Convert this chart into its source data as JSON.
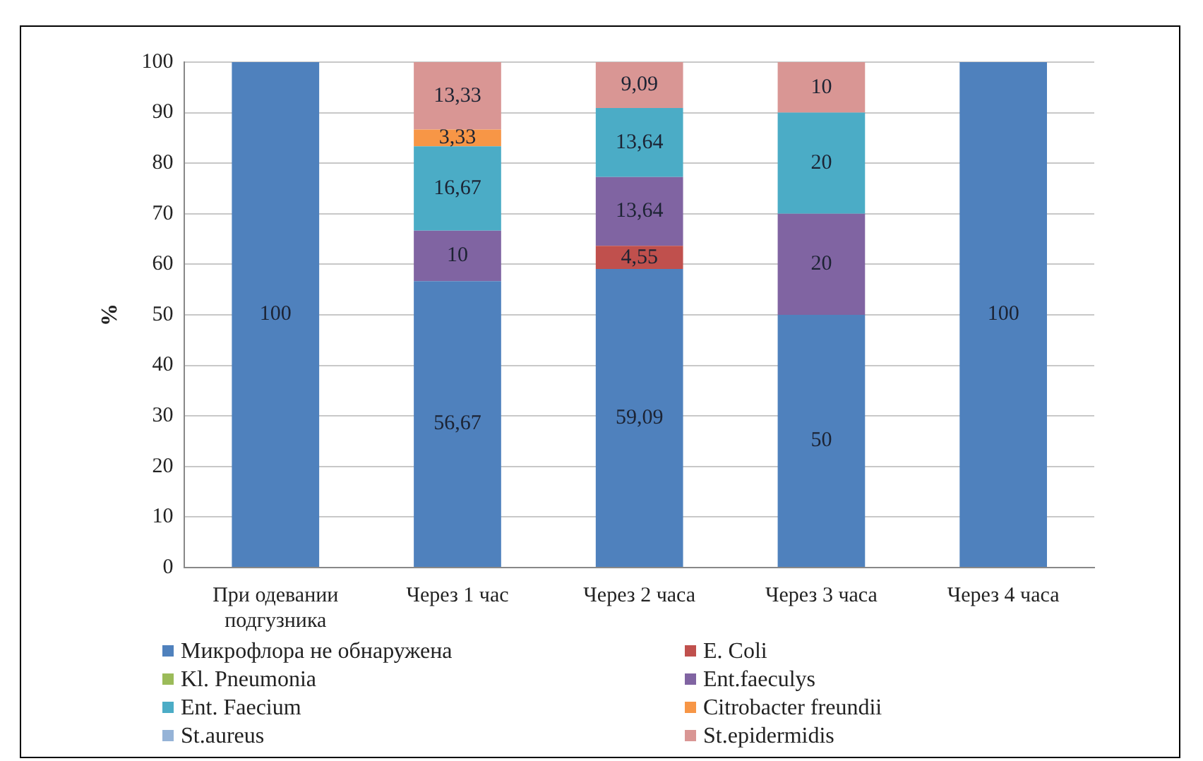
{
  "chart_data": {
    "type": "bar",
    "stacked": true,
    "ylabel": "%",
    "categories": [
      "При одевании подгузника",
      "Через 1 час",
      "Через 2 часа",
      "Через 3 часа",
      "Через 4 часа"
    ],
    "ylim": [
      0,
      100
    ],
    "yticks": [
      0,
      10,
      20,
      30,
      40,
      50,
      60,
      70,
      80,
      90,
      100
    ],
    "grid": "y",
    "legend": "bottom",
    "series": [
      {
        "name": "Микрофлора не обнаружена",
        "color": "#4f81bd",
        "values": [
          100,
          56.67,
          59.09,
          50,
          100
        ],
        "value_labels": [
          "100",
          "56,67",
          "59,09",
          "50",
          "100"
        ]
      },
      {
        "name": "E. Coli",
        "color": "#c0504d",
        "values": [
          null,
          null,
          4.55,
          null,
          null
        ],
        "value_labels": [
          null,
          null,
          "4,55",
          null,
          null
        ]
      },
      {
        "name": "Kl. Pneumonia",
        "color": "#9bbb59",
        "values": [
          null,
          null,
          null,
          null,
          null
        ]
      },
      {
        "name": "Ent.faeculys",
        "color": "#8064a2",
        "values": [
          null,
          10,
          13.64,
          20,
          null
        ],
        "value_labels": [
          null,
          "10",
          "13,64",
          "20",
          null
        ]
      },
      {
        "name": "Ent. Faecium",
        "color": "#4bacc6",
        "values": [
          null,
          16.67,
          13.64,
          20,
          null
        ],
        "value_labels": [
          null,
          "16,67",
          "13,64",
          "20",
          null
        ]
      },
      {
        "name": "Citrobacter freundii",
        "color": "#f79646",
        "values": [
          null,
          3.33,
          null,
          null,
          null
        ],
        "value_labels": [
          null,
          "3,33",
          null,
          null,
          null
        ]
      },
      {
        "name": "St.aureus",
        "color": "#95b3d7",
        "values": [
          null,
          null,
          null,
          null,
          null
        ]
      },
      {
        "name": "St.epidermidis",
        "color": "#d99694",
        "values": [
          null,
          13.33,
          9.09,
          10,
          null
        ],
        "value_labels": [
          null,
          "13,33",
          "9,09",
          "10",
          null
        ]
      }
    ]
  }
}
